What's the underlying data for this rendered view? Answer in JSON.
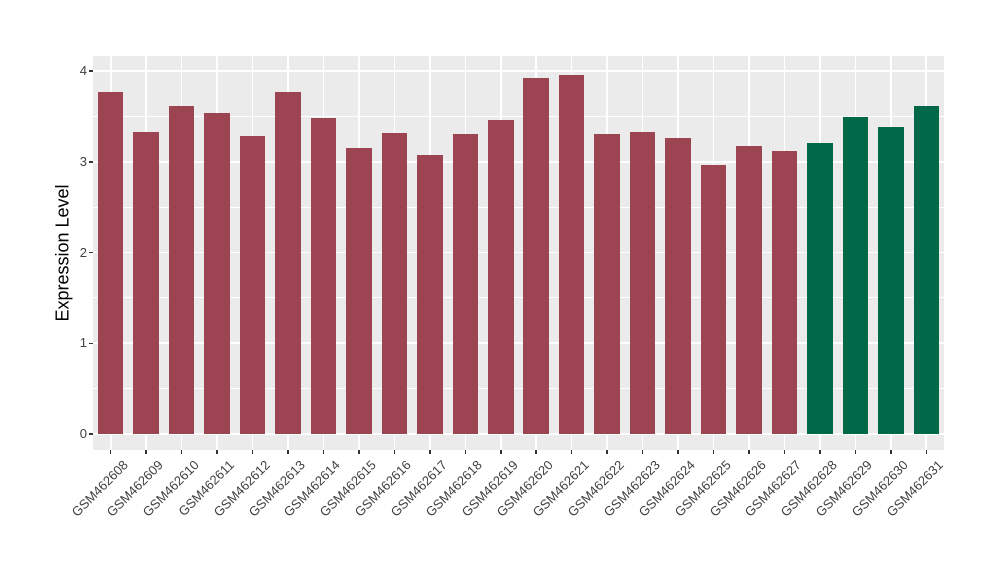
{
  "chart_data": {
    "type": "bar",
    "title": "",
    "xlabel": "",
    "ylabel": "Expression Level",
    "categories": [
      "GSM462608",
      "GSM462609",
      "GSM462610",
      "GSM462611",
      "GSM462612",
      "GSM462613",
      "GSM462614",
      "GSM462615",
      "GSM462616",
      "GSM462617",
      "GSM462618",
      "GSM462619",
      "GSM462620",
      "GSM462621",
      "GSM462622",
      "GSM462623",
      "GSM462624",
      "GSM462625",
      "GSM462626",
      "GSM462627",
      "GSM462628",
      "GSM462629",
      "GSM462630",
      "GSM462631"
    ],
    "values": [
      3.77,
      3.33,
      3.61,
      3.54,
      3.28,
      3.77,
      3.48,
      3.15,
      3.32,
      3.07,
      3.31,
      3.46,
      3.92,
      3.96,
      3.31,
      3.33,
      3.26,
      2.96,
      3.17,
      3.12,
      3.21,
      3.49,
      3.38,
      3.61
    ],
    "bar_groups": [
      "main",
      "main",
      "main",
      "main",
      "main",
      "main",
      "main",
      "main",
      "main",
      "main",
      "main",
      "main",
      "main",
      "main",
      "main",
      "main",
      "main",
      "main",
      "main",
      "main",
      "highlight",
      "highlight",
      "highlight",
      "highlight"
    ],
    "ytick_labels": [
      "0",
      "1",
      "2",
      "3",
      "4"
    ],
    "ytick_values": [
      0,
      1,
      2,
      3,
      4
    ],
    "ylim": [
      -0.18,
      4.16
    ],
    "grid": "horizontal major+minor white, vertical major at category centers",
    "legend_position": "none",
    "colors": {
      "bar_main": "#9c4452",
      "bar_highlight": "#016948",
      "panel_background": "#ebebeb",
      "gridline": "#ffffff",
      "axis_text": "#404040",
      "axis_title": "#000000",
      "tick_mark": "#333333",
      "figure_background": "#ffffff"
    }
  }
}
